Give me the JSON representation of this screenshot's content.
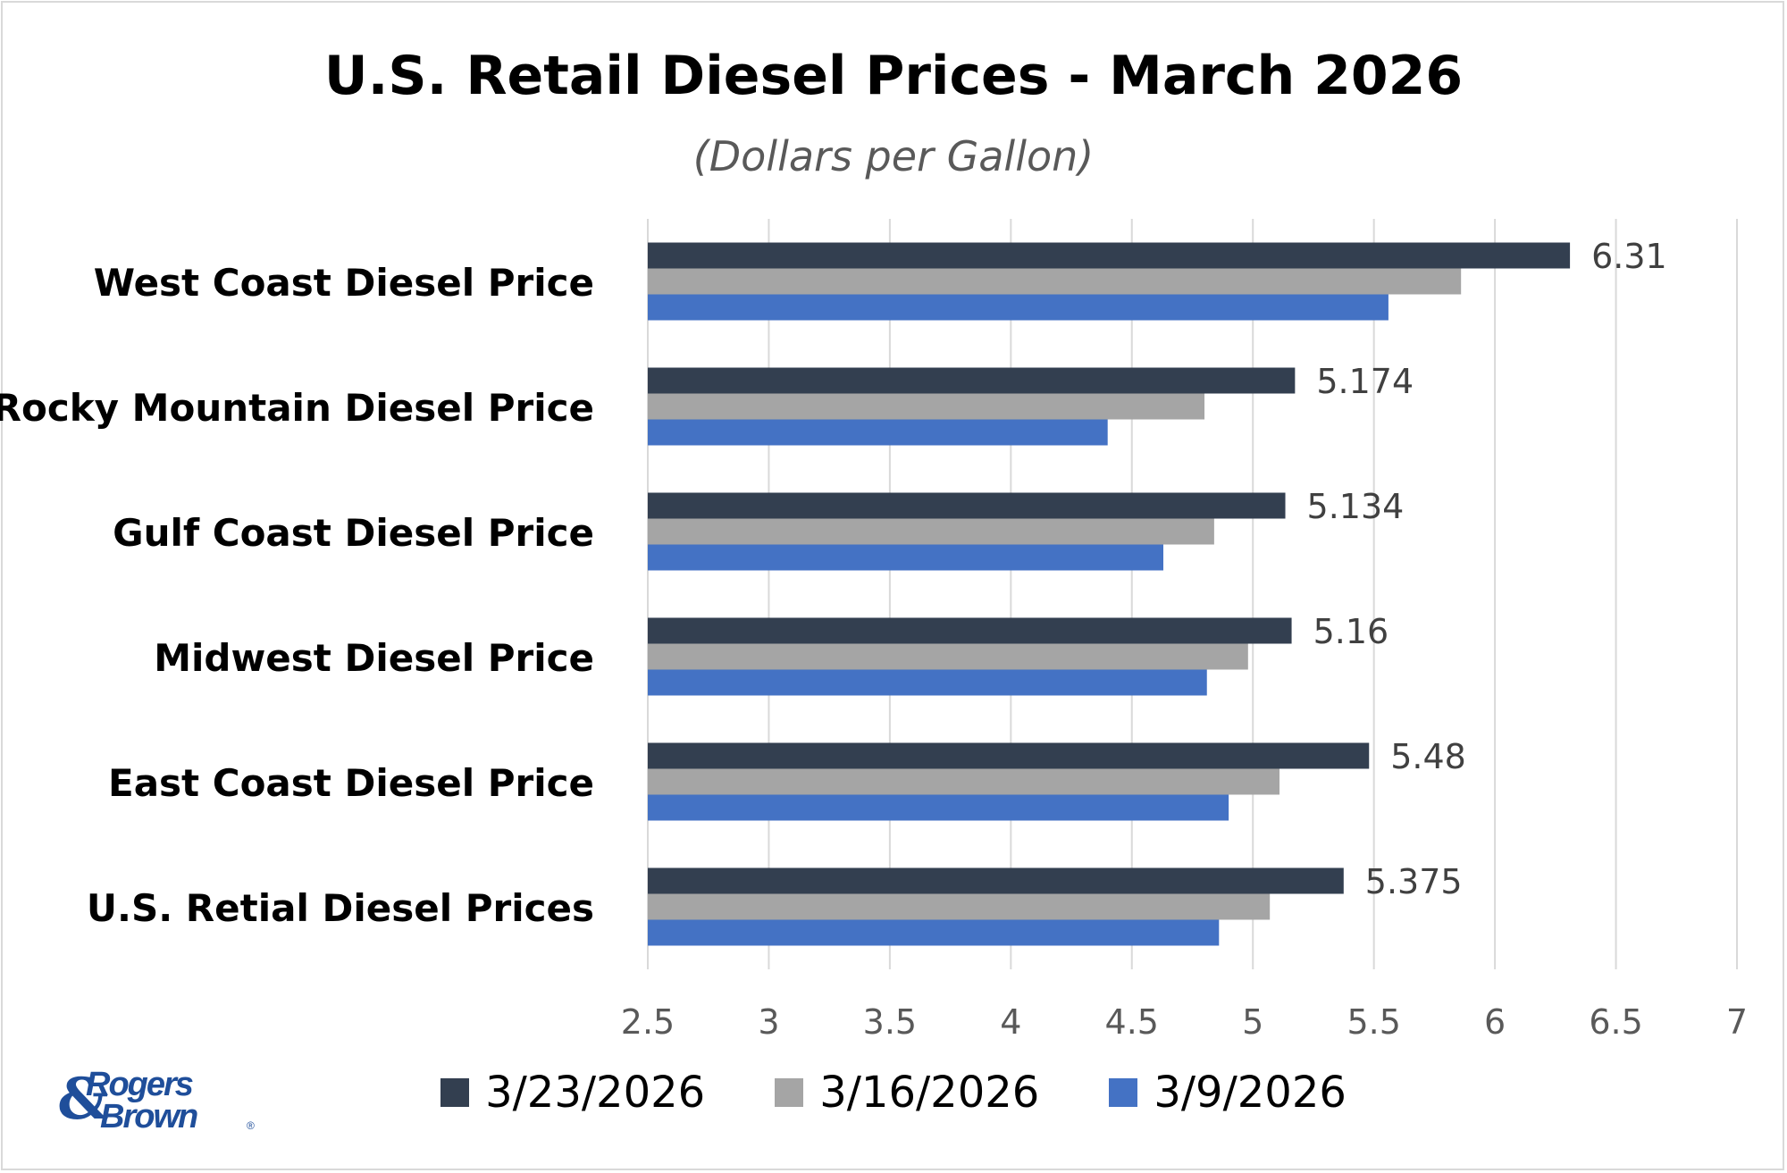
{
  "chart_data": {
    "type": "bar",
    "orientation": "horizontal",
    "title": "U.S. Retail Diesel Prices - March 2026",
    "subtitle": "(Dollars per Gallon)",
    "categories": [
      "West Coast Diesel Price",
      "Rocky Mountain Diesel Price",
      "Gulf Coast Diesel Price",
      "Midwest Diesel Price",
      "East Coast Diesel Price",
      "U.S. Retial Diesel Prices"
    ],
    "series": [
      {
        "name": "3/23/2026",
        "color": "#333f50",
        "values": [
          6.31,
          5.174,
          5.134,
          5.16,
          5.48,
          5.375
        ]
      },
      {
        "name": "3/16/2026",
        "color": "#a5a5a5",
        "values": [
          5.86,
          4.8,
          4.84,
          4.98,
          5.11,
          5.07
        ]
      },
      {
        "name": "3/9/2026",
        "color": "#4472c4",
        "values": [
          5.56,
          4.4,
          4.63,
          4.81,
          4.9,
          4.86
        ]
      }
    ],
    "data_labels": [
      "6.31",
      "5.174",
      "5.134",
      "5.16",
      "5.48",
      "5.375"
    ],
    "xlim": [
      2.5,
      7
    ],
    "xticks": [
      "2.5",
      "3",
      "3.5",
      "4",
      "4.5",
      "5",
      "5.5",
      "6",
      "6.5",
      "7"
    ],
    "grid": true,
    "legend_position": "bottom"
  },
  "logo": {
    "line1": "Rogers",
    "line2": "Brown",
    "ampersand": "&",
    "registered": "®"
  }
}
